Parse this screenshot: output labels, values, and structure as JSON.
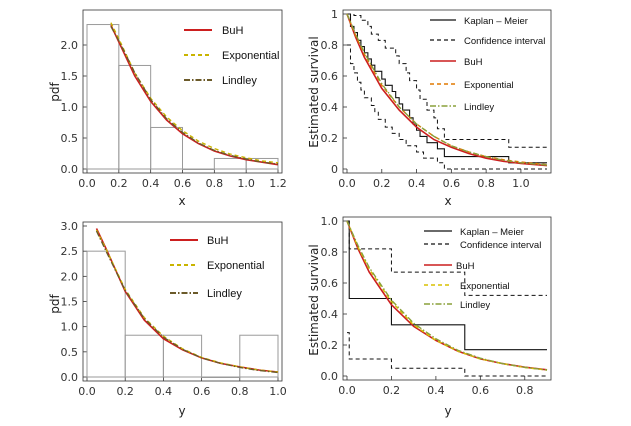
{
  "chart_data": [
    {
      "id": "p1",
      "type": "histogram-with-density",
      "xlabel": "x",
      "ylabel": "pdf",
      "xlim": [
        0,
        1.2
      ],
      "ylim": [
        0,
        2.5
      ],
      "xticks": [
        "0.0",
        "0.2",
        "0.4",
        "0.6",
        "0.8",
        "1.0",
        "1.2"
      ],
      "yticks": [
        "0.0",
        "0.5",
        "1.0",
        "1.5",
        "2.0"
      ],
      "histogram": {
        "edges": [
          0,
          0.2,
          0.4,
          0.6,
          0.8,
          1.0,
          1.2
        ],
        "values": [
          2.33,
          1.67,
          0.67,
          0.0,
          0.17,
          0.17
        ]
      },
      "series": [
        {
          "name": "BuH",
          "color": "#cc1f1f",
          "dash": "",
          "points": [
            [
              0.15,
              2.32
            ],
            [
              0.2,
              2.05
            ],
            [
              0.3,
              1.5
            ],
            [
              0.4,
              1.09
            ],
            [
              0.5,
              0.79
            ],
            [
              0.6,
              0.57
            ],
            [
              0.7,
              0.41
            ],
            [
              0.8,
              0.29
            ],
            [
              0.9,
              0.21
            ],
            [
              1.0,
              0.15
            ],
            [
              1.1,
              0.11
            ],
            [
              1.2,
              0.07
            ]
          ]
        },
        {
          "name": "Exponential",
          "color": "#c9b400",
          "dash": "4,3",
          "points": [
            [
              0.15,
              2.36
            ],
            [
              0.2,
              2.1
            ],
            [
              0.3,
              1.55
            ],
            [
              0.4,
              1.14
            ],
            [
              0.5,
              0.84
            ],
            [
              0.6,
              0.62
            ],
            [
              0.7,
              0.45
            ],
            [
              0.8,
              0.33
            ],
            [
              0.9,
              0.24
            ],
            [
              1.0,
              0.18
            ],
            [
              1.1,
              0.13
            ],
            [
              1.2,
              0.1
            ]
          ]
        },
        {
          "name": "Lindley",
          "color": "#6b5a2a",
          "dash": "6,2,1.5,2",
          "points": [
            [
              0.15,
              2.3
            ],
            [
              0.2,
              2.07
            ],
            [
              0.3,
              1.55
            ],
            [
              0.4,
              1.12
            ],
            [
              0.5,
              0.81
            ],
            [
              0.6,
              0.59
            ],
            [
              0.7,
              0.42
            ],
            [
              0.8,
              0.3
            ],
            [
              0.9,
              0.22
            ],
            [
              1.0,
              0.16
            ],
            [
              1.1,
              0.11
            ],
            [
              1.2,
              0.08
            ]
          ]
        }
      ],
      "legend": {
        "entries": [
          "BuH",
          "Exponential",
          "Lindley"
        ]
      }
    },
    {
      "id": "p2",
      "type": "survival",
      "xlabel": "x",
      "ylabel": "Estimated survival",
      "xlim": [
        0,
        1.15
      ],
      "ylim": [
        0,
        1
      ],
      "xticks": [
        "0.0",
        "0.2",
        "0.4",
        "0.6",
        "0.8",
        "1.0"
      ],
      "yticks": [
        "0",
        "0.2",
        "0.4",
        "0.6",
        "0.8",
        "1"
      ],
      "km": [
        [
          0,
          1.0
        ],
        [
          0.02,
          0.92
        ],
        [
          0.04,
          0.88
        ],
        [
          0.06,
          0.83
        ],
        [
          0.08,
          0.79
        ],
        [
          0.1,
          0.75
        ],
        [
          0.12,
          0.71
        ],
        [
          0.14,
          0.67
        ],
        [
          0.16,
          0.63
        ],
        [
          0.2,
          0.58
        ],
        [
          0.22,
          0.54
        ],
        [
          0.26,
          0.5
        ],
        [
          0.28,
          0.46
        ],
        [
          0.3,
          0.42
        ],
        [
          0.32,
          0.38
        ],
        [
          0.36,
          0.33
        ],
        [
          0.38,
          0.29
        ],
        [
          0.4,
          0.25
        ],
        [
          0.42,
          0.21
        ],
        [
          0.46,
          0.17
        ],
        [
          0.52,
          0.13
        ],
        [
          0.56,
          0.08
        ],
        [
          0.93,
          0.04
        ],
        [
          1.15,
          0.04
        ]
      ],
      "ci_upper": [
        [
          0,
          1.0
        ],
        [
          0.04,
          0.99
        ],
        [
          0.08,
          0.96
        ],
        [
          0.12,
          0.92
        ],
        [
          0.14,
          0.87
        ],
        [
          0.18,
          0.83
        ],
        [
          0.22,
          0.78
        ],
        [
          0.28,
          0.73
        ],
        [
          0.3,
          0.68
        ],
        [
          0.34,
          0.62
        ],
        [
          0.36,
          0.57
        ],
        [
          0.4,
          0.51
        ],
        [
          0.42,
          0.45
        ],
        [
          0.46,
          0.38
        ],
        [
          0.5,
          0.33
        ],
        [
          0.52,
          0.26
        ],
        [
          0.56,
          0.19
        ],
        [
          0.93,
          0.14
        ],
        [
          1.15,
          0.14
        ]
      ],
      "ci_lower": [
        [
          0,
          0.8
        ],
        [
          0.02,
          0.68
        ],
        [
          0.04,
          0.62
        ],
        [
          0.06,
          0.56
        ],
        [
          0.08,
          0.51
        ],
        [
          0.1,
          0.46
        ],
        [
          0.14,
          0.41
        ],
        [
          0.16,
          0.37
        ],
        [
          0.18,
          0.32
        ],
        [
          0.22,
          0.27
        ],
        [
          0.26,
          0.23
        ],
        [
          0.3,
          0.19
        ],
        [
          0.34,
          0.15
        ],
        [
          0.4,
          0.11
        ],
        [
          0.44,
          0.07
        ],
        [
          0.52,
          0.04
        ],
        [
          0.56,
          0.0
        ],
        [
          1.15,
          0.0
        ]
      ],
      "series": [
        {
          "name": "BuH",
          "color": "#cc1f1f",
          "dash": "",
          "points": [
            [
              0,
              1.0
            ],
            [
              0.05,
              0.85
            ],
            [
              0.1,
              0.72
            ],
            [
              0.2,
              0.52
            ],
            [
              0.3,
              0.38
            ],
            [
              0.4,
              0.27
            ],
            [
              0.5,
              0.19
            ],
            [
              0.6,
              0.14
            ],
            [
              0.7,
              0.1
            ],
            [
              0.8,
              0.07
            ],
            [
              0.9,
              0.05
            ],
            [
              1.0,
              0.036
            ],
            [
              1.15,
              0.022
            ]
          ]
        },
        {
          "name": "Exponential",
          "color": "#e07800",
          "dash": "4,3",
          "points": [
            [
              0,
              1.0
            ],
            [
              0.05,
              0.86
            ],
            [
              0.1,
              0.74
            ],
            [
              0.2,
              0.54
            ],
            [
              0.3,
              0.4
            ],
            [
              0.4,
              0.29
            ],
            [
              0.5,
              0.21
            ],
            [
              0.6,
              0.15
            ],
            [
              0.7,
              0.11
            ],
            [
              0.8,
              0.08
            ],
            [
              0.9,
              0.06
            ],
            [
              1.0,
              0.045
            ],
            [
              1.15,
              0.028
            ]
          ]
        },
        {
          "name": "Lindley",
          "color": "#8aa03a",
          "dash": "6,2,1.5,2",
          "points": [
            [
              0,
              1.0
            ],
            [
              0.05,
              0.87
            ],
            [
              0.1,
              0.75
            ],
            [
              0.2,
              0.55
            ],
            [
              0.3,
              0.4
            ],
            [
              0.4,
              0.29
            ],
            [
              0.5,
              0.21
            ],
            [
              0.6,
              0.15
            ],
            [
              0.7,
              0.11
            ],
            [
              0.8,
              0.08
            ],
            [
              0.9,
              0.057
            ],
            [
              1.0,
              0.04
            ],
            [
              1.15,
              0.025
            ]
          ]
        }
      ],
      "legend": {
        "entries": [
          "Kaplan – Meier",
          "Confidence interval",
          "BuH",
          "Exponential",
          "Lindley"
        ]
      }
    },
    {
      "id": "p3",
      "type": "histogram-with-density",
      "xlabel": "y",
      "ylabel": "pdf",
      "xlim": [
        0,
        1.0
      ],
      "ylim": [
        0,
        3.0
      ],
      "xticks": [
        "0.0",
        "0.2",
        "0.4",
        "0.6",
        "0.8",
        "1.0"
      ],
      "yticks": [
        "0.0",
        "0.5",
        "1.0",
        "1.5",
        "2.0",
        "2.5",
        "3.0"
      ],
      "histogram": {
        "edges": [
          0,
          0.2,
          0.4,
          0.6,
          0.8,
          1.0
        ],
        "values": [
          2.5,
          0.83,
          0.83,
          0.0,
          0.83
        ]
      },
      "series": [
        {
          "name": "BuH",
          "color": "#cc1f1f",
          "dash": "",
          "points": [
            [
              0.05,
              2.95
            ],
            [
              0.1,
              2.55
            ],
            [
              0.2,
              1.7
            ],
            [
              0.3,
              1.13
            ],
            [
              0.4,
              0.76
            ],
            [
              0.5,
              0.54
            ],
            [
              0.6,
              0.38
            ],
            [
              0.7,
              0.27
            ],
            [
              0.8,
              0.2
            ],
            [
              0.9,
              0.14
            ],
            [
              1.0,
              0.1
            ]
          ]
        },
        {
          "name": "Exponential",
          "color": "#c9b400",
          "dash": "4,3",
          "points": [
            [
              0.05,
              2.92
            ],
            [
              0.1,
              2.54
            ],
            [
              0.2,
              1.74
            ],
            [
              0.3,
              1.18
            ],
            [
              0.4,
              0.81
            ],
            [
              0.5,
              0.56
            ],
            [
              0.6,
              0.39
            ],
            [
              0.7,
              0.28
            ],
            [
              0.8,
              0.2
            ],
            [
              0.9,
              0.14
            ],
            [
              1.0,
              0.1
            ]
          ]
        },
        {
          "name": "Lindley",
          "color": "#6b5a2a",
          "dash": "6,2,1.5,2",
          "points": [
            [
              0.05,
              2.9
            ],
            [
              0.1,
              2.5
            ],
            [
              0.2,
              1.72
            ],
            [
              0.3,
              1.16
            ],
            [
              0.4,
              0.79
            ],
            [
              0.5,
              0.55
            ],
            [
              0.6,
              0.38
            ],
            [
              0.7,
              0.27
            ],
            [
              0.8,
              0.19
            ],
            [
              0.9,
              0.13
            ],
            [
              1.0,
              0.09
            ]
          ]
        }
      ],
      "legend": {
        "entries": [
          "BuH",
          "Exponential",
          "Lindley"
        ]
      }
    },
    {
      "id": "p4",
      "type": "survival",
      "xlabel": "y",
      "ylabel": "Estimated survival",
      "xlim": [
        0,
        0.9
      ],
      "ylim": [
        0,
        1
      ],
      "xticks": [
        "0.0",
        "0.2",
        "0.4",
        "0.6",
        "0.8"
      ],
      "yticks": [
        "0.0",
        "0.2",
        "0.4",
        "0.6",
        "0.8",
        "1.0"
      ],
      "km": [
        [
          0,
          1.0
        ],
        [
          0.01,
          0.5
        ],
        [
          0.2,
          0.33
        ],
        [
          0.53,
          0.17
        ],
        [
          0.9,
          0.17
        ]
      ],
      "ci_upper": [
        [
          0,
          1.0
        ],
        [
          0.01,
          0.82
        ],
        [
          0.2,
          0.67
        ],
        [
          0.53,
          0.52
        ],
        [
          0.9,
          0.52
        ]
      ],
      "ci_lower": [
        [
          0,
          0.28
        ],
        [
          0.01,
          0.11
        ],
        [
          0.2,
          0.05
        ],
        [
          0.53,
          0.0
        ],
        [
          0.9,
          0.0
        ]
      ],
      "series": [
        {
          "name": "BuH",
          "color": "#cc1f1f",
          "dash": "",
          "points": [
            [
              0,
              1.0
            ],
            [
              0.05,
              0.82
            ],
            [
              0.1,
              0.67
            ],
            [
              0.2,
              0.46
            ],
            [
              0.3,
              0.32
            ],
            [
              0.4,
              0.23
            ],
            [
              0.5,
              0.16
            ],
            [
              0.6,
              0.11
            ],
            [
              0.7,
              0.08
            ],
            [
              0.8,
              0.057
            ],
            [
              0.9,
              0.04
            ]
          ]
        },
        {
          "name": "Exponential",
          "color": "#d8c000",
          "dash": "4,3",
          "points": [
            [
              0,
              1.0
            ],
            [
              0.05,
              0.83
            ],
            [
              0.1,
              0.69
            ],
            [
              0.2,
              0.48
            ],
            [
              0.3,
              0.33
            ],
            [
              0.4,
              0.23
            ],
            [
              0.5,
              0.16
            ],
            [
              0.6,
              0.11
            ],
            [
              0.7,
              0.08
            ],
            [
              0.8,
              0.055
            ],
            [
              0.9,
              0.038
            ]
          ]
        },
        {
          "name": "Lindley",
          "color": "#8aa03a",
          "dash": "6,2,1.5,2",
          "points": [
            [
              0,
              1.0
            ],
            [
              0.05,
              0.84
            ],
            [
              0.1,
              0.7
            ],
            [
              0.2,
              0.49
            ],
            [
              0.3,
              0.34
            ],
            [
              0.4,
              0.24
            ],
            [
              0.5,
              0.165
            ],
            [
              0.6,
              0.115
            ],
            [
              0.7,
              0.08
            ],
            [
              0.8,
              0.056
            ],
            [
              0.9,
              0.039
            ]
          ]
        }
      ],
      "legend": {
        "entries": [
          "Kaplan – Meier",
          "Confidence interval",
          "BuH",
          "Exponential",
          "Lindley"
        ]
      }
    }
  ]
}
